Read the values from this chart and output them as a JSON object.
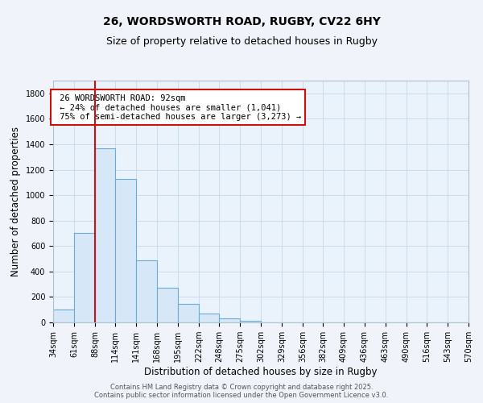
{
  "title1": "26, WORDSWORTH ROAD, RUGBY, CV22 6HY",
  "title2": "Size of property relative to detached houses in Rugby",
  "xlabel": "Distribution of detached houses by size in Rugby",
  "ylabel": "Number of detached properties",
  "annotation_line1": "26 WORDSWORTH ROAD: 92sqm",
  "annotation_line2": "← 24% of detached houses are smaller (1,041)",
  "annotation_line3": "75% of semi-detached houses are larger (3,273) →",
  "bar_edges": [
    34,
    61,
    88,
    114,
    141,
    168,
    195,
    222,
    248,
    275,
    302,
    329,
    356,
    382,
    409,
    436,
    463,
    490,
    516,
    543,
    570
  ],
  "bar_heights": [
    100,
    700,
    1370,
    1130,
    490,
    275,
    145,
    70,
    30,
    15,
    0,
    0,
    0,
    0,
    0,
    0,
    0,
    0,
    0,
    0
  ],
  "bar_color": "#d6e8f7",
  "bar_edge_color": "#6aaad4",
  "vline_x": 88,
  "vline_color": "#cc1111",
  "annotation_box_color": "#cc1111",
  "bg_color": "#f0f4fa",
  "plot_bg_color": "#eaf2fb",
  "grid_color": "#c8d8e8",
  "footer1": "Contains HM Land Registry data © Crown copyright and database right 2025.",
  "footer2": "Contains public sector information licensed under the Open Government Licence v3.0.",
  "ylim": [
    0,
    1900
  ],
  "yticks": [
    0,
    200,
    400,
    600,
    800,
    1000,
    1200,
    1400,
    1600,
    1800
  ],
  "title_fontsize": 10,
  "subtitle_fontsize": 9,
  "tick_label_fontsize": 7,
  "axis_label_fontsize": 8.5,
  "footer_fontsize": 6
}
